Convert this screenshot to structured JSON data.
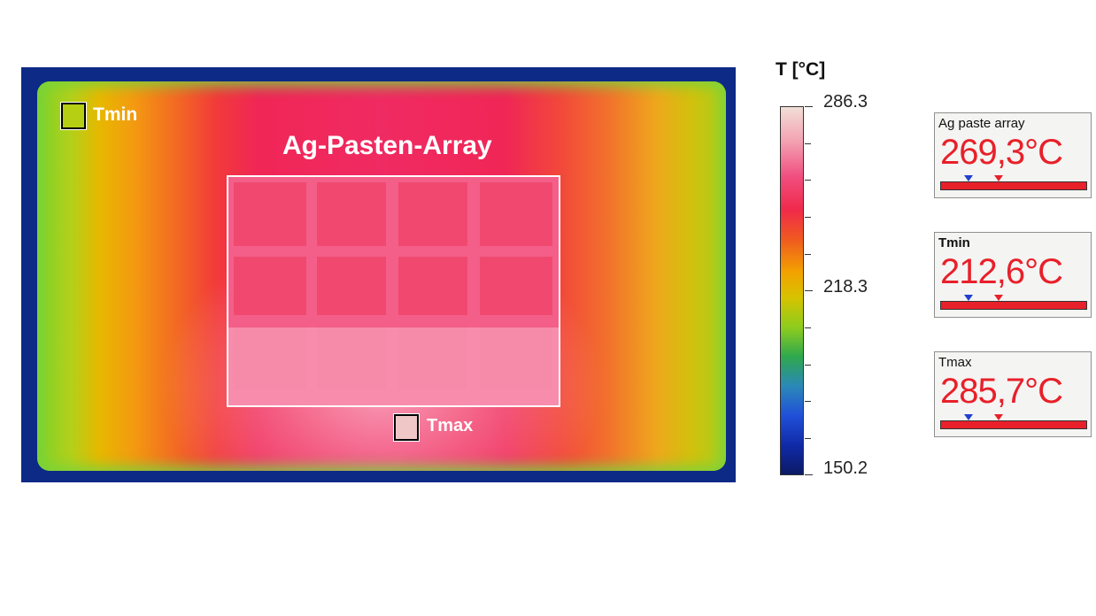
{
  "image": {
    "labels": {
      "array": "Ag-Pasten-Array",
      "tmin": "Tmin",
      "tmax": "Tmax"
    }
  },
  "colorbar": {
    "unit_label": "T [°C]",
    "max": "286.3",
    "mid": "218.3",
    "min": "150.2"
  },
  "panels": [
    {
      "title": "Ag paste array",
      "value": "269,3°C"
    },
    {
      "title": "Tmin",
      "value": "212,6°C"
    },
    {
      "title": "Tmax",
      "value": "285,7°C"
    }
  ],
  "colors": {
    "readout_red": "#e8202a",
    "marker_blue": "#2040d0",
    "background_blue": "#0d2a86"
  }
}
